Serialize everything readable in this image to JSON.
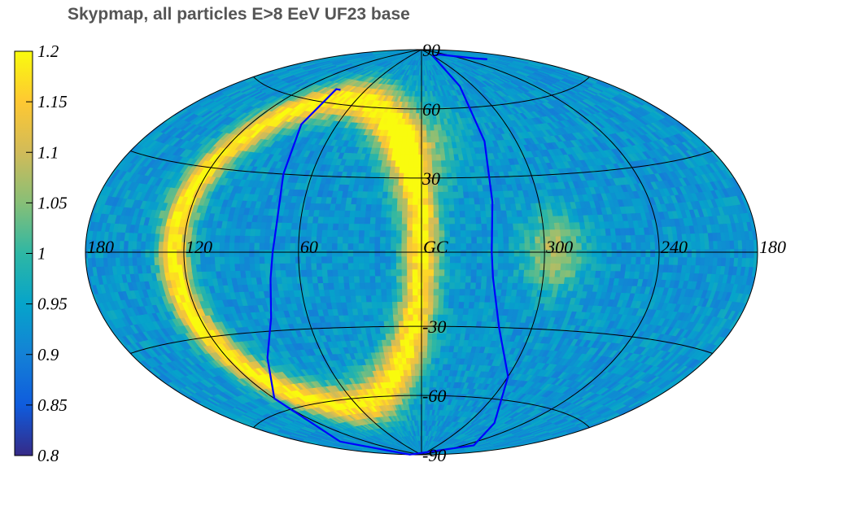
{
  "title": "Skypmap, all particles E>8 EeV UF23 base",
  "chart_data": {
    "type": "heatmap",
    "projection": "Hammer-Aitoff (galactic, centered on GC)",
    "title": "Skypmap, all particles E>8 EeV UF23 base",
    "colorbar": {
      "min": 0.8,
      "max": 1.2,
      "ticks": [
        "0.8",
        "0.85",
        "0.9",
        "0.95",
        "1",
        "1.05",
        "1.1",
        "1.15",
        "1.2"
      ],
      "colors": [
        "#352a87",
        "#0f5cdd",
        "#1481d6",
        "#06a4ca",
        "#2eb7a4",
        "#87bf77",
        "#d1bb59",
        "#fec832",
        "#f9fb0e"
      ]
    },
    "longitude_labels": [
      "180",
      "120",
      "60",
      "GC",
      "300",
      "240",
      "180"
    ],
    "longitude_values": [
      180,
      120,
      60,
      0,
      300,
      240,
      180
    ],
    "latitude_labels": [
      "90",
      "60",
      "30",
      "-30",
      "-60",
      "-90"
    ],
    "latitude_values": [
      90,
      60,
      30,
      -30,
      -60,
      -90
    ],
    "meridians": [
      -180,
      -120,
      -60,
      0,
      60,
      120,
      180
    ],
    "parallels": [
      -60,
      -30,
      0,
      30,
      60
    ],
    "grid": true,
    "baseline": 0.93,
    "features": [
      {
        "name": "arc-band",
        "center_lon": 63,
        "center_lat": 0,
        "radius_deg": 63,
        "width_deg": 9,
        "peak": 1.2
      },
      {
        "name": "west-blob",
        "center_lon": -65,
        "center_lat": 0,
        "radius_deg": 15,
        "peak": 1.08
      },
      {
        "name": "central-patch",
        "center_lon": 0,
        "center_lat": 45,
        "radius_deg": 18,
        "peak": 1.03
      }
    ],
    "curve": {
      "color": "#0000ff",
      "points": [
        [
          85,
          66
        ],
        [
          90,
          66
        ],
        [
          85,
          50
        ],
        [
          76,
          30
        ],
        [
          72,
          10
        ],
        [
          73,
          0
        ],
        [
          75,
          -10
        ],
        [
          80,
          -25
        ],
        [
          95,
          -40
        ],
        [
          120,
          -55
        ],
        [
          150,
          -75
        ],
        [
          180,
          -88
        ],
        [
          -135,
          -80
        ],
        [
          -90,
          -70
        ],
        [
          -60,
          -50
        ],
        [
          -42,
          -30
        ],
        [
          -35,
          -10
        ],
        [
          -34,
          0
        ],
        [
          -36,
          20
        ],
        [
          -40,
          45
        ],
        [
          -45,
          70
        ],
        [
          -60,
          86
        ],
        [
          -100,
          86
        ],
        [
          -140,
          80
        ],
        [
          -150,
          78
        ]
      ]
    }
  }
}
